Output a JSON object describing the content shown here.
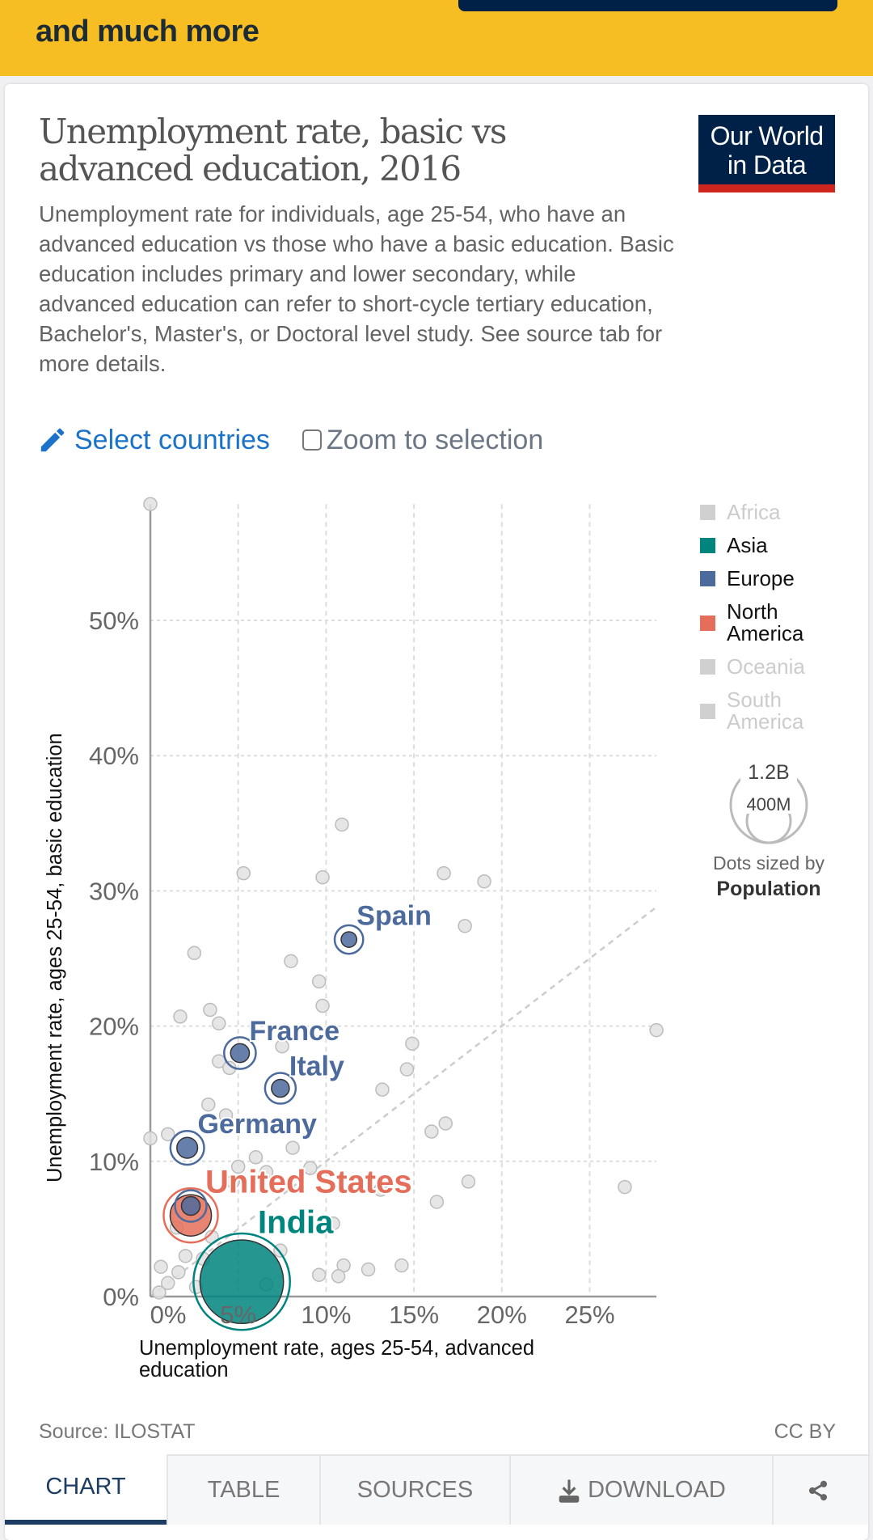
{
  "banner": {
    "text": "and much more"
  },
  "header": {
    "title": "Unemployment rate, basic vs advanced education, 2016",
    "subtitle": "Unemployment rate for individuals, age 25-54, who have an advanced education vs those who have a basic education. Basic education includes primary and lower secondary, while advanced education can refer to short-cycle tertiary education, Bachelor's, Master's, or Doctoral level study. See source tab for more details.",
    "logo_line1": "Our World",
    "logo_line2": "in Data"
  },
  "controls": {
    "select_countries": "Select countries",
    "zoom_to_selection": "Zoom to selection",
    "zoom_checked": false
  },
  "legend": {
    "items": [
      {
        "label": "Africa",
        "color": "#cccccc",
        "active": false
      },
      {
        "label": "Asia",
        "color": "#00847e",
        "active": true
      },
      {
        "label": "Europe",
        "color": "#4c6a9c",
        "active": true
      },
      {
        "label": "North America",
        "color": "#e56e5a",
        "active": true
      },
      {
        "label": "Oceania",
        "color": "#cccccc",
        "active": false
      },
      {
        "label": "South America",
        "color": "#cccccc",
        "active": false
      }
    ],
    "size_large": "1.2B",
    "size_small": "400M",
    "sized_by_label": "Dots sized by",
    "sized_by_value": "Population"
  },
  "chart_data": {
    "type": "scatter",
    "title": "Unemployment rate, basic vs advanced education, 2016",
    "xlabel": "Unemployment rate, ages 25-54, advanced education",
    "ylabel": "Unemployment rate, ages 25-54, basic education",
    "xlim": [
      0,
      28.8
    ],
    "ylim": [
      0,
      58.6
    ],
    "x_ticks": [
      "0%",
      "5%",
      "10%",
      "15%",
      "20%",
      "25%"
    ],
    "x_tick_values": [
      0,
      5,
      10,
      15,
      20,
      25
    ],
    "y_ticks": [
      "0%",
      "10%",
      "20%",
      "30%",
      "40%",
      "50%"
    ],
    "y_tick_values": [
      0,
      10,
      20,
      30,
      40,
      50
    ],
    "grid": true,
    "reference_line": "y = x",
    "legend_position": "right",
    "highlighted": [
      {
        "name": "Spain",
        "x": 11.3,
        "y": 26.4,
        "region": "Europe",
        "pop_m": 46
      },
      {
        "name": "France",
        "x": 5.1,
        "y": 18.0,
        "region": "Europe",
        "pop_m": 67
      },
      {
        "name": "Italy",
        "x": 7.4,
        "y": 15.4,
        "region": "Europe",
        "pop_m": 60
      },
      {
        "name": "Germany",
        "x": 2.1,
        "y": 11.0,
        "region": "Europe",
        "pop_m": 82
      },
      {
        "name": "",
        "x": 2.3,
        "y": 6.7,
        "region": "Europe",
        "pop_m": 66
      },
      {
        "name": "United States",
        "x": 2.3,
        "y": 6.0,
        "region": "North America",
        "pop_m": 323
      },
      {
        "name": "India",
        "x": 5.2,
        "y": 1.1,
        "region": "Asia",
        "pop_m": 1324
      }
    ],
    "background_points": [
      {
        "x": 0.0,
        "y": 58.6,
        "pop_m": 2
      },
      {
        "x": 10.9,
        "y": 34.9,
        "pop_m": 2
      },
      {
        "x": 16.7,
        "y": 31.3,
        "pop_m": 2
      },
      {
        "x": 19.0,
        "y": 30.7,
        "pop_m": 2
      },
      {
        "x": 9.8,
        "y": 31.0,
        "pop_m": 10
      },
      {
        "x": 5.3,
        "y": 31.3,
        "pop_m": 2
      },
      {
        "x": 17.9,
        "y": 27.4,
        "pop_m": 2
      },
      {
        "x": 2.5,
        "y": 25.4,
        "pop_m": 2
      },
      {
        "x": 8.0,
        "y": 24.8,
        "pop_m": 2
      },
      {
        "x": 9.6,
        "y": 23.3,
        "pop_m": 2
      },
      {
        "x": 9.8,
        "y": 21.5,
        "pop_m": 2
      },
      {
        "x": 28.8,
        "y": 19.7,
        "pop_m": 2
      },
      {
        "x": 1.7,
        "y": 20.7,
        "pop_m": 2
      },
      {
        "x": 3.4,
        "y": 21.2,
        "pop_m": 2
      },
      {
        "x": 3.9,
        "y": 20.2,
        "pop_m": 2
      },
      {
        "x": 7.5,
        "y": 18.5,
        "pop_m": 2
      },
      {
        "x": 14.9,
        "y": 18.7,
        "pop_m": 2
      },
      {
        "x": 14.6,
        "y": 16.8,
        "pop_m": 2
      },
      {
        "x": 13.2,
        "y": 15.3,
        "pop_m": 2
      },
      {
        "x": 3.9,
        "y": 17.4,
        "pop_m": 2
      },
      {
        "x": 4.5,
        "y": 16.9,
        "pop_m": 2
      },
      {
        "x": 16.8,
        "y": 12.8,
        "pop_m": 2
      },
      {
        "x": 16.0,
        "y": 12.2,
        "pop_m": 2
      },
      {
        "x": 0.0,
        "y": 11.7,
        "pop_m": 2
      },
      {
        "x": 3.3,
        "y": 14.2,
        "pop_m": 6
      },
      {
        "x": 4.3,
        "y": 13.4,
        "pop_m": 30
      },
      {
        "x": 1.0,
        "y": 12.0,
        "pop_m": 3
      },
      {
        "x": 5.0,
        "y": 9.6,
        "pop_m": 20
      },
      {
        "x": 6.6,
        "y": 9.2,
        "pop_m": 12
      },
      {
        "x": 9.1,
        "y": 9.5,
        "pop_m": 10
      },
      {
        "x": 4.7,
        "y": 8.5,
        "pop_m": 6
      },
      {
        "x": 13.1,
        "y": 7.9,
        "pop_m": 3
      },
      {
        "x": 18.1,
        "y": 8.5,
        "pop_m": 2
      },
      {
        "x": 27.0,
        "y": 8.1,
        "pop_m": 2
      },
      {
        "x": 16.3,
        "y": 7.0,
        "pop_m": 2
      },
      {
        "x": 10.4,
        "y": 5.4,
        "pop_m": 2
      },
      {
        "x": 3.5,
        "y": 4.4,
        "pop_m": 10
      },
      {
        "x": 7.4,
        "y": 3.4,
        "pop_m": 30
      },
      {
        "x": 11.0,
        "y": 2.3,
        "pop_m": 2
      },
      {
        "x": 10.7,
        "y": 1.5,
        "pop_m": 20
      },
      {
        "x": 12.4,
        "y": 2.0,
        "pop_m": 8
      },
      {
        "x": 14.3,
        "y": 2.3,
        "pop_m": 10
      },
      {
        "x": 9.6,
        "y": 1.6,
        "pop_m": 16
      },
      {
        "x": 1.6,
        "y": 1.8,
        "pop_m": 6
      },
      {
        "x": 0.6,
        "y": 2.2,
        "pop_m": 3
      },
      {
        "x": 1.0,
        "y": 1.0,
        "pop_m": 12
      },
      {
        "x": 0.5,
        "y": 0.3,
        "pop_m": 6
      },
      {
        "x": 2.6,
        "y": 0.7,
        "pop_m": 10
      },
      {
        "x": 2.0,
        "y": 3.0,
        "pop_m": 3
      },
      {
        "x": 6.6,
        "y": 0.9,
        "pop_m": 12
      },
      {
        "x": 3.0,
        "y": 2.8,
        "pop_m": 4
      },
      {
        "x": 1.5,
        "y": 5.1,
        "pop_m": 3
      },
      {
        "x": 8.1,
        "y": 11.0,
        "pop_m": 3
      },
      {
        "x": 6.0,
        "y": 10.3,
        "pop_m": 4
      }
    ]
  },
  "footer": {
    "source": "Source: ILOSTAT",
    "license": "CC BY"
  },
  "tabs": [
    {
      "label": "CHART",
      "active": true
    },
    {
      "label": "TABLE",
      "active": false
    },
    {
      "label": "SOURCES",
      "active": false
    },
    {
      "label": "DOWNLOAD",
      "active": false,
      "icon": "download-icon"
    },
    {
      "label": "",
      "active": false,
      "icon": "share-icon"
    }
  ]
}
